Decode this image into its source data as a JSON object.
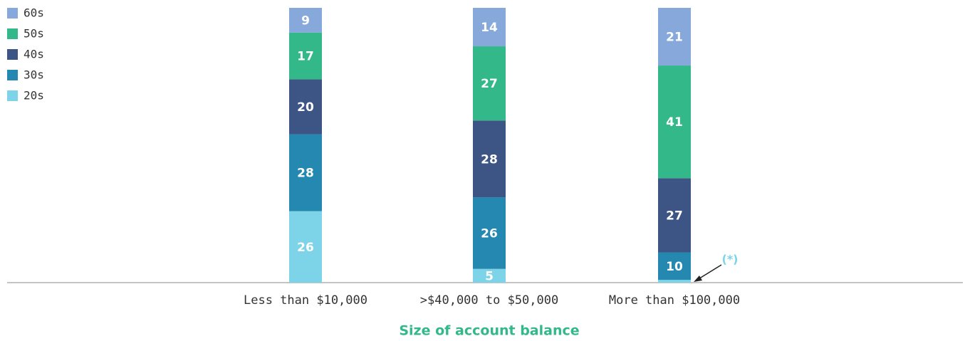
{
  "chart_data": {
    "type": "stacked_bar",
    "x_label": "Size of account balance",
    "categories": [
      "Less than $10,000",
      ">$40,000 to $50,000",
      "More than $100,000"
    ],
    "series": [
      {
        "name": "20s",
        "color": "#7dd3e8",
        "values": [
          26,
          5,
          1
        ]
      },
      {
        "name": "30s",
        "color": "#2488b0",
        "values": [
          28,
          26,
          10
        ]
      },
      {
        "name": "40s",
        "color": "#3d5584",
        "values": [
          20,
          28,
          27
        ]
      },
      {
        "name": "50s",
        "color": "#33b889",
        "values": [
          17,
          27,
          41
        ]
      },
      {
        "name": "60s",
        "color": "#86a8da",
        "values": [
          9,
          14,
          21
        ]
      }
    ],
    "ylim": [
      0,
      100
    ],
    "annotation": "(*)",
    "legend": "top-left"
  }
}
